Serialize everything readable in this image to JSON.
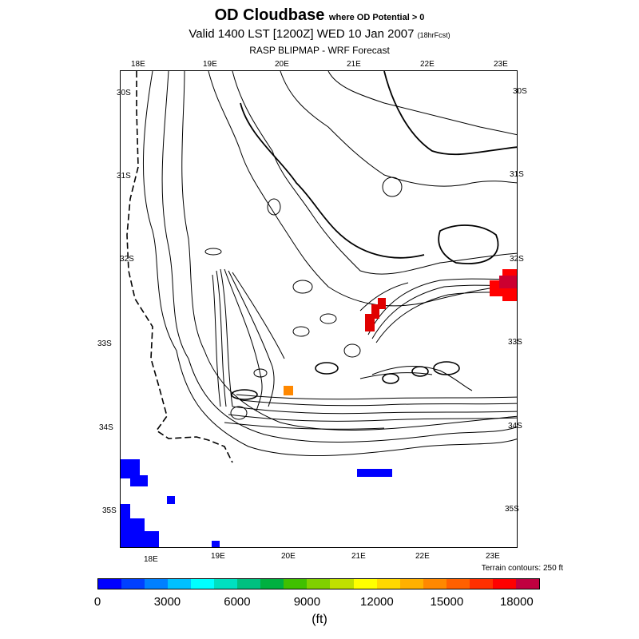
{
  "title": {
    "main": "OD Cloudbase",
    "qualifier": "where OD Potential > 0"
  },
  "valid": {
    "text": "Valid 1400 LST [1200Z] WED 10 Jan 2007",
    "forecast": "(18hrFcst)"
  },
  "source": "RASP BLIPMAP - WRF Forecast",
  "longitudes_top": [
    "18E",
    "19E",
    "20E",
    "21E",
    "22E",
    "23E"
  ],
  "longitudes_bottom": [
    "18E",
    "19E",
    "20E",
    "21E",
    "22E",
    "23E"
  ],
  "latitudes_left": [
    "30S",
    "31S",
    "32S",
    "33S",
    "34S",
    "35S"
  ],
  "latitudes_right": [
    "30S",
    "31S",
    "32S",
    "33S",
    "34S",
    "35S"
  ],
  "terrain_note": "Terrain contours: 250 ft",
  "colorbar": {
    "colors": [
      "#0000ff",
      "#0040ff",
      "#0080ff",
      "#00c0ff",
      "#00ffff",
      "#00e0c0",
      "#00c080",
      "#00b040",
      "#40c000",
      "#80d000",
      "#c0e000",
      "#ffff00",
      "#ffd800",
      "#ffb000",
      "#ff8800",
      "#ff6000",
      "#ff3000",
      "#ff0000",
      "#c00040"
    ],
    "tick_labels": [
      "0",
      "3000",
      "6000",
      "9000",
      "12000",
      "15000",
      "18000"
    ],
    "unit": "(ft)"
  },
  "colors": {
    "blue": "#0000ff",
    "red": "#ff0000",
    "dark_red": "#e00000",
    "orange": "#ff8800"
  }
}
